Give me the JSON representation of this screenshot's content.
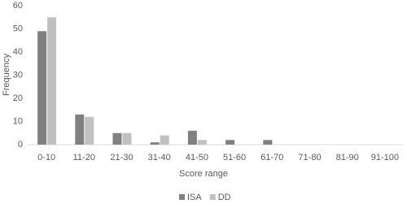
{
  "chart_data": {
    "type": "bar",
    "categories": [
      "0-10",
      "11-20",
      "21-30",
      "31-40",
      "41-50",
      "51-60",
      "61-70",
      "71-80",
      "81-90",
      "91-100"
    ],
    "series": [
      {
        "name": "ISA",
        "color": "#808080",
        "values": [
          49,
          13,
          5,
          1,
          6,
          2,
          2,
          0,
          0,
          0
        ]
      },
      {
        "name": "DD",
        "color": "#c0c0c0",
        "values": [
          55,
          12,
          5,
          4,
          2,
          0,
          0,
          0,
          0,
          0
        ]
      }
    ],
    "xlabel": "Score range",
    "ylabel": "Frequency",
    "ylim": [
      0,
      60
    ],
    "yticks": [
      0,
      10,
      20,
      30,
      40,
      50,
      60
    ],
    "grid": false,
    "legend": "bottom"
  }
}
